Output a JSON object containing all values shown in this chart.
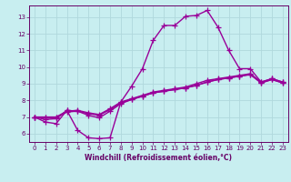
{
  "bg_color": "#c8eef0",
  "grid_color": "#b0d8dc",
  "line_color": "#990099",
  "marker": "+",
  "markersize": 4,
  "linewidth": 1.0,
  "xlabel": "Windchill (Refroidissement éolien,°C)",
  "xlabel_color": "#660066",
  "tick_color": "#660066",
  "spine_color": "#660066",
  "xlim": [
    -0.5,
    23.5
  ],
  "ylim": [
    5.5,
    13.7
  ],
  "yticks": [
    6,
    7,
    8,
    9,
    10,
    11,
    12,
    13
  ],
  "xticks": [
    0,
    1,
    2,
    3,
    4,
    5,
    6,
    7,
    8,
    9,
    10,
    11,
    12,
    13,
    14,
    15,
    16,
    17,
    18,
    19,
    20,
    21,
    22,
    23
  ],
  "series": [
    {
      "x": [
        0,
        1,
        2,
        3,
        4,
        5,
        6,
        7,
        8,
        9,
        10,
        11,
        12,
        13,
        14,
        15,
        16,
        17,
        18,
        19,
        20,
        21,
        22,
        23
      ],
      "y": [
        7.0,
        6.7,
        6.6,
        7.4,
        6.2,
        5.75,
        5.7,
        5.75,
        7.9,
        8.85,
        9.9,
        11.6,
        12.5,
        12.5,
        13.05,
        13.1,
        13.4,
        12.4,
        11.0,
        9.9,
        9.9,
        9.1,
        9.3,
        9.1
      ]
    },
    {
      "x": [
        0,
        1,
        2,
        3,
        4,
        5,
        6,
        7,
        8,
        9,
        10,
        11,
        12,
        13,
        14,
        15,
        16,
        17,
        18,
        19,
        20,
        21,
        22,
        23
      ],
      "y": [
        7.0,
        6.85,
        6.9,
        7.4,
        7.35,
        7.1,
        6.95,
        7.35,
        7.8,
        8.05,
        8.25,
        8.45,
        8.55,
        8.65,
        8.75,
        8.9,
        9.1,
        9.25,
        9.35,
        9.45,
        9.55,
        9.05,
        9.25,
        9.05
      ]
    },
    {
      "x": [
        0,
        1,
        2,
        3,
        4,
        5,
        6,
        7,
        8,
        9,
        10,
        11,
        12,
        13,
        14,
        15,
        16,
        17,
        18,
        19,
        20,
        21,
        22,
        23
      ],
      "y": [
        7.0,
        6.95,
        6.95,
        7.3,
        7.35,
        7.2,
        7.1,
        7.45,
        7.85,
        8.05,
        8.25,
        8.45,
        8.55,
        8.65,
        8.75,
        8.9,
        9.1,
        9.25,
        9.35,
        9.45,
        9.55,
        9.05,
        9.25,
        9.05
      ]
    },
    {
      "x": [
        0,
        1,
        2,
        3,
        4,
        5,
        6,
        7,
        8,
        9,
        10,
        11,
        12,
        13,
        14,
        15,
        16,
        17,
        18,
        19,
        20,
        21,
        22,
        23
      ],
      "y": [
        7.0,
        7.0,
        7.0,
        7.35,
        7.4,
        7.25,
        7.15,
        7.5,
        7.9,
        8.1,
        8.3,
        8.5,
        8.6,
        8.7,
        8.8,
        9.0,
        9.2,
        9.3,
        9.4,
        9.5,
        9.6,
        9.1,
        9.3,
        9.1
      ]
    }
  ]
}
